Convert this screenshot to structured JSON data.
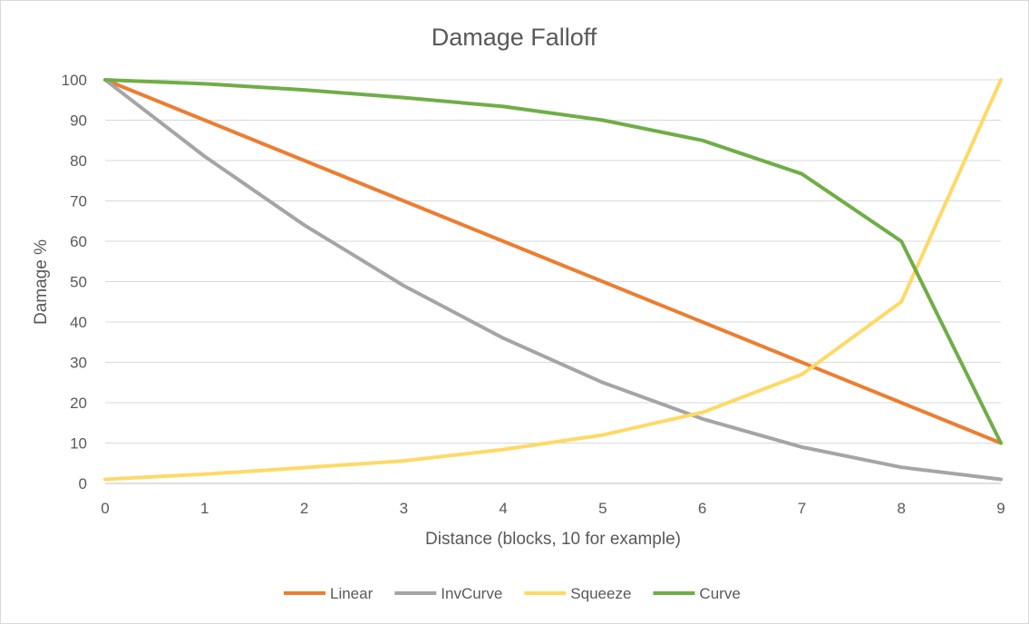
{
  "chart_data": {
    "type": "line",
    "title": "Damage Falloff",
    "xlabel": "Distance (blocks, 10 for example)",
    "ylabel": "Damage %",
    "x": [
      0,
      1,
      2,
      3,
      4,
      5,
      6,
      7,
      8,
      9
    ],
    "xlim": [
      0,
      9
    ],
    "ylim": [
      0,
      100
    ],
    "yticks": [
      0,
      10,
      20,
      30,
      40,
      50,
      60,
      70,
      80,
      90,
      100
    ],
    "grid": true,
    "legend_position": "bottom",
    "series": [
      {
        "name": "Linear",
        "color": "#ED7D31",
        "values": [
          100,
          90,
          80,
          70,
          60,
          50,
          40,
          30,
          20,
          10
        ]
      },
      {
        "name": "InvCurve",
        "color": "#A5A5A5",
        "values": [
          100,
          81,
          64,
          49,
          36,
          25,
          16,
          9,
          4,
          1
        ]
      },
      {
        "name": "Squeeze",
        "color": "#FFD966",
        "values": [
          1,
          2.3,
          3.9,
          5.6,
          8.4,
          12,
          17.6,
          27,
          45,
          100
        ]
      },
      {
        "name": "Curve",
        "color": "#70AD47",
        "values": [
          100,
          99,
          97.5,
          95.6,
          93.4,
          90,
          85,
          76.7,
          60,
          10
        ]
      }
    ]
  }
}
